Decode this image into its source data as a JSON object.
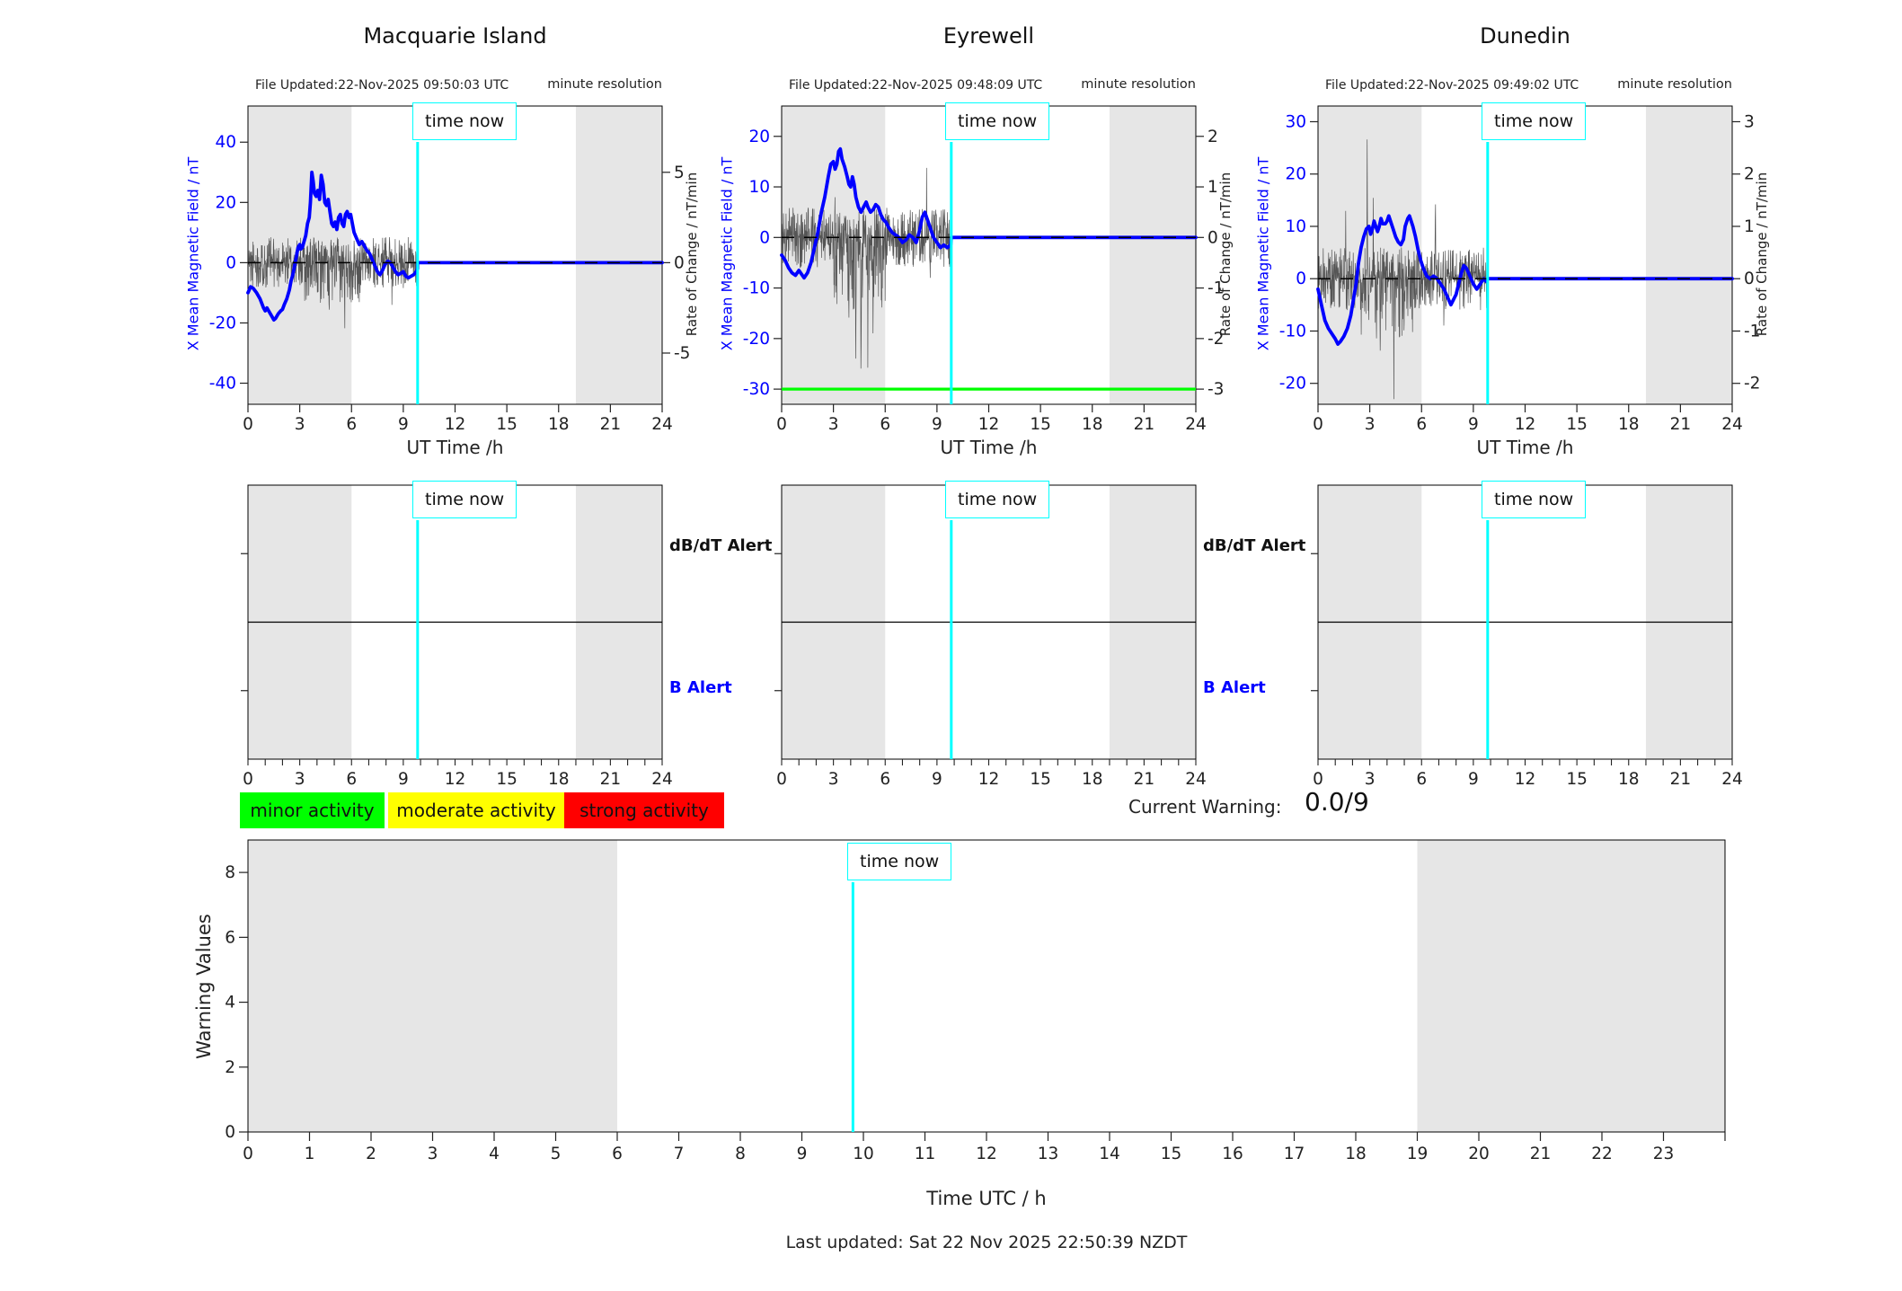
{
  "colors": {
    "blue": "#0000FF",
    "cyan": "#00FFFF",
    "green": "#00FF00",
    "yellow": "#FFFF00",
    "red": "#FF0000",
    "band_gray": "#E6E6E6",
    "noise_gray": "#555555",
    "axis_black": "#222222"
  },
  "ui": {
    "time_now_label": "time now",
    "minute_resolution": "minute resolution",
    "left_axis_label": "X Mean Magnetic Field / nT",
    "right_axis_label": "Rate of Change / nT/min",
    "top_xlabel": "UT Time /h",
    "dbdt_alert_label": "dB/dT Alert",
    "b_alert_label": "B Alert",
    "current_warning_label": "Current Warning:",
    "current_warning_value": "0.0/9",
    "warning_ylabel": "Warning Values",
    "bottom_xlabel": "Time UTC / h",
    "last_updated": "Last updated: Sat 22 Nov 2025 22:50:39 NZDT"
  },
  "legend": [
    {
      "label": "minor activity",
      "color": "#00FF00"
    },
    {
      "label": "moderate activity",
      "color": "#FFFF00"
    },
    {
      "label": "strong activity",
      "color": "#FF0000"
    }
  ],
  "time_now_hour": 9.83,
  "night_bands": [
    [
      0,
      6
    ],
    [
      19,
      24
    ]
  ],
  "chart_data": {
    "stations": [
      {
        "type": "line",
        "name": "Macquarie Island",
        "file_updated": "File Updated:22-Nov-2025 09:50:03 UTC",
        "xlabel": "UT Time /h",
        "x_ticks": [
          0,
          3,
          6,
          9,
          12,
          15,
          18,
          21,
          24
        ],
        "ylim": [
          -47,
          52
        ],
        "left_ticks": [
          -40,
          -20,
          0,
          20,
          40
        ],
        "right_ticks": [
          -5,
          0,
          5
        ],
        "right_to_left_scale": 6,
        "threshold_green": null,
        "flat_after": 0,
        "mean_field_series": [
          [
            0,
            -10
          ],
          [
            0.15,
            -8
          ],
          [
            0.3,
            -8.5
          ],
          [
            0.5,
            -10
          ],
          [
            0.7,
            -12
          ],
          [
            0.9,
            -15
          ],
          [
            1.0,
            -16
          ],
          [
            1.1,
            -15
          ],
          [
            1.25,
            -16.5
          ],
          [
            1.4,
            -18
          ],
          [
            1.5,
            -19
          ],
          [
            1.6,
            -18.5
          ],
          [
            1.75,
            -17
          ],
          [
            1.9,
            -16
          ],
          [
            2.0,
            -15.5
          ],
          [
            2.1,
            -14
          ],
          [
            2.25,
            -12
          ],
          [
            2.4,
            -9
          ],
          [
            2.5,
            -6
          ],
          [
            2.6,
            -4
          ],
          [
            2.7,
            -1
          ],
          [
            2.8,
            2
          ],
          [
            2.9,
            5
          ],
          [
            3.0,
            6
          ],
          [
            3.05,
            4.5
          ],
          [
            3.15,
            5
          ],
          [
            3.25,
            7
          ],
          [
            3.35,
            9
          ],
          [
            3.45,
            13
          ],
          [
            3.55,
            15
          ],
          [
            3.62,
            20
          ],
          [
            3.7,
            30
          ],
          [
            3.78,
            27
          ],
          [
            3.85,
            23
          ],
          [
            3.95,
            22
          ],
          [
            4.05,
            24
          ],
          [
            4.15,
            21
          ],
          [
            4.25,
            29
          ],
          [
            4.35,
            26
          ],
          [
            4.45,
            20
          ],
          [
            4.55,
            19
          ],
          [
            4.65,
            21
          ],
          [
            4.75,
            17
          ],
          [
            4.85,
            13
          ],
          [
            4.95,
            12
          ],
          [
            5.05,
            13.5
          ],
          [
            5.15,
            11
          ],
          [
            5.25,
            15
          ],
          [
            5.35,
            16
          ],
          [
            5.45,
            13
          ],
          [
            5.55,
            12
          ],
          [
            5.65,
            16
          ],
          [
            5.75,
            17
          ],
          [
            5.85,
            15
          ],
          [
            5.95,
            16
          ],
          [
            6.05,
            13
          ],
          [
            6.15,
            10
          ],
          [
            6.3,
            8
          ],
          [
            6.45,
            6
          ],
          [
            6.6,
            7
          ],
          [
            6.75,
            5.5
          ],
          [
            6.9,
            4
          ],
          [
            7.05,
            3
          ],
          [
            7.2,
            1
          ],
          [
            7.35,
            -1
          ],
          [
            7.5,
            -3
          ],
          [
            7.65,
            -4
          ],
          [
            7.8,
            -2.5
          ],
          [
            7.95,
            -0.5
          ],
          [
            8.1,
            0.5
          ],
          [
            8.25,
            0
          ],
          [
            8.4,
            -1.5
          ],
          [
            8.55,
            -3
          ],
          [
            8.7,
            -4
          ],
          [
            8.85,
            -3.5
          ],
          [
            9.0,
            -3
          ],
          [
            9.15,
            -4.5
          ],
          [
            9.3,
            -5
          ],
          [
            9.45,
            -4.5
          ],
          [
            9.6,
            -4
          ],
          [
            9.75,
            -3
          ],
          [
            9.83,
            -2
          ]
        ],
        "noise": {
          "seed": 11,
          "amp": 8.5,
          "down_boost": [
            3.0,
            6.5,
            1.6
          ],
          "spikes": [
            [
              3.2,
              14
            ],
            [
              4.7,
              -23
            ],
            [
              5.6,
              -18
            ],
            [
              8.2,
              12
            ],
            [
              8.35,
              -10
            ]
          ]
        }
      },
      {
        "type": "line",
        "name": "Eyrewell",
        "file_updated": "File Updated:22-Nov-2025 09:48:09 UTC",
        "xlabel": "UT Time /h",
        "x_ticks": [
          0,
          3,
          6,
          9,
          12,
          15,
          18,
          21,
          24
        ],
        "ylim": [
          -33,
          26
        ],
        "left_ticks": [
          -30,
          -20,
          -10,
          0,
          10,
          20
        ],
        "right_ticks": [
          -3,
          -2,
          -1,
          0,
          1,
          2
        ],
        "right_to_left_scale": 10,
        "threshold_green": -30,
        "flat_after": 0,
        "mean_field_series": [
          [
            0,
            -3.5
          ],
          [
            0.2,
            -4.5
          ],
          [
            0.4,
            -6
          ],
          [
            0.6,
            -7
          ],
          [
            0.8,
            -7.5
          ],
          [
            1.0,
            -6.5
          ],
          [
            1.1,
            -7
          ],
          [
            1.3,
            -8
          ],
          [
            1.5,
            -7
          ],
          [
            1.7,
            -5
          ],
          [
            1.9,
            -2
          ],
          [
            2.1,
            1
          ],
          [
            2.3,
            5
          ],
          [
            2.5,
            8
          ],
          [
            2.7,
            12
          ],
          [
            2.85,
            14.5
          ],
          [
            3.0,
            15
          ],
          [
            3.1,
            13.5
          ],
          [
            3.2,
            14.5
          ],
          [
            3.3,
            17
          ],
          [
            3.4,
            17.5
          ],
          [
            3.5,
            15.5
          ],
          [
            3.65,
            14
          ],
          [
            3.8,
            12
          ],
          [
            3.9,
            10.5
          ],
          [
            4.0,
            10
          ],
          [
            4.1,
            12
          ],
          [
            4.2,
            10.5
          ],
          [
            4.3,
            8
          ],
          [
            4.45,
            6
          ],
          [
            4.6,
            5
          ],
          [
            4.75,
            6
          ],
          [
            4.9,
            7
          ],
          [
            5.0,
            6
          ],
          [
            5.15,
            5
          ],
          [
            5.3,
            5.5
          ],
          [
            5.45,
            6.5
          ],
          [
            5.6,
            6
          ],
          [
            5.75,
            4.5
          ],
          [
            5.9,
            3.5
          ],
          [
            6.05,
            3
          ],
          [
            6.2,
            2
          ],
          [
            6.4,
            1
          ],
          [
            6.6,
            0.5
          ],
          [
            6.8,
            0
          ],
          [
            7.0,
            -1
          ],
          [
            7.2,
            -0.5
          ],
          [
            7.4,
            0.5
          ],
          [
            7.6,
            0
          ],
          [
            7.8,
            -1
          ],
          [
            8.0,
            1.5
          ],
          [
            8.15,
            4
          ],
          [
            8.3,
            5
          ],
          [
            8.45,
            3.5
          ],
          [
            8.6,
            2
          ],
          [
            8.8,
            0
          ],
          [
            9.0,
            -1
          ],
          [
            9.2,
            -2
          ],
          [
            9.4,
            -1.5
          ],
          [
            9.6,
            -2
          ],
          [
            9.8,
            -1.5
          ]
        ],
        "noise": {
          "seed": 23,
          "amp": 6.0,
          "down_boost": [
            3.0,
            6.0,
            2.4
          ],
          "spikes": [
            [
              3.1,
              12
            ],
            [
              3.9,
              -16
            ],
            [
              4.3,
              -20
            ],
            [
              4.6,
              -26
            ],
            [
              5.0,
              -22
            ],
            [
              5.3,
              -15
            ],
            [
              8.4,
              10
            ],
            [
              8.6,
              -12
            ]
          ]
        }
      },
      {
        "type": "line",
        "name": "Dunedin",
        "file_updated": "File Updated:22-Nov-2025 09:49:02 UTC",
        "xlabel": "UT Time /h",
        "x_ticks": [
          0,
          3,
          6,
          9,
          12,
          15,
          18,
          21,
          24
        ],
        "ylim": [
          -24,
          33
        ],
        "left_ticks": [
          -20,
          -10,
          0,
          10,
          20,
          30
        ],
        "right_ticks": [
          -2,
          -1,
          0,
          1,
          2,
          3
        ],
        "right_to_left_scale": 10,
        "threshold_green": null,
        "flat_after": 0,
        "mean_field_series": [
          [
            0,
            -2
          ],
          [
            0.2,
            -5
          ],
          [
            0.4,
            -8
          ],
          [
            0.6,
            -9.5
          ],
          [
            0.8,
            -10.5
          ],
          [
            1.0,
            -11.5
          ],
          [
            1.15,
            -12.5
          ],
          [
            1.3,
            -12
          ],
          [
            1.5,
            -11
          ],
          [
            1.7,
            -9.5
          ],
          [
            1.9,
            -7
          ],
          [
            2.05,
            -4
          ],
          [
            2.2,
            -1
          ],
          [
            2.35,
            3
          ],
          [
            2.5,
            6
          ],
          [
            2.65,
            8
          ],
          [
            2.8,
            9.5
          ],
          [
            2.95,
            10
          ],
          [
            3.05,
            8.5
          ],
          [
            3.15,
            9.5
          ],
          [
            3.25,
            11
          ],
          [
            3.35,
            10
          ],
          [
            3.45,
            9
          ],
          [
            3.55,
            10
          ],
          [
            3.65,
            11.5
          ],
          [
            3.75,
            10.5
          ],
          [
            3.9,
            10.5
          ],
          [
            4.0,
            11
          ],
          [
            4.1,
            12
          ],
          [
            4.2,
            11
          ],
          [
            4.35,
            9.5
          ],
          [
            4.5,
            8
          ],
          [
            4.65,
            7
          ],
          [
            4.8,
            6.5
          ],
          [
            4.95,
            7.5
          ],
          [
            5.05,
            10
          ],
          [
            5.2,
            11.5
          ],
          [
            5.3,
            12
          ],
          [
            5.4,
            11
          ],
          [
            5.5,
            10
          ],
          [
            5.65,
            8
          ],
          [
            5.8,
            5.5
          ],
          [
            5.95,
            3.5
          ],
          [
            6.1,
            2
          ],
          [
            6.3,
            0.5
          ],
          [
            6.5,
            0
          ],
          [
            6.7,
            0.5
          ],
          [
            6.9,
            0
          ],
          [
            7.1,
            -1
          ],
          [
            7.3,
            -2
          ],
          [
            7.5,
            -3.5
          ],
          [
            7.7,
            -5
          ],
          [
            7.85,
            -4
          ],
          [
            8.0,
            -3
          ],
          [
            8.15,
            -1
          ],
          [
            8.3,
            1
          ],
          [
            8.45,
            2.5
          ],
          [
            8.6,
            2
          ],
          [
            8.8,
            0.5
          ],
          [
            9.0,
            -1
          ],
          [
            9.2,
            -2
          ],
          [
            9.4,
            -1
          ],
          [
            9.6,
            0
          ],
          [
            9.75,
            -0.5
          ]
        ],
        "noise": {
          "seed": 37,
          "amp": 6.0,
          "down_boost": [
            2.5,
            5.5,
            2.0
          ],
          "spikes": [
            [
              1.6,
              10
            ],
            [
              2.85,
              26
            ],
            [
              3.2,
              18
            ],
            [
              3.6,
              -14
            ],
            [
              4.4,
              -18
            ],
            [
              5.0,
              -13
            ],
            [
              6.8,
              17.5
            ],
            [
              7.3,
              -12
            ]
          ]
        }
      }
    ],
    "alert_panels": {
      "x_ticks": [
        0,
        3,
        6,
        9,
        12,
        15,
        18,
        21,
        24
      ],
      "rows": [
        "dB/dT Alert",
        "B Alert"
      ]
    },
    "warning_chart": {
      "type": "line",
      "title": "",
      "ylabel": "Warning Values",
      "xlabel": "Time UTC / h",
      "ylim": [
        0,
        9
      ],
      "y_ticks": [
        0,
        2,
        4,
        6,
        8
      ],
      "x_tick_labels": [
        0,
        1,
        2,
        3,
        4,
        5,
        6,
        7,
        8,
        9,
        10,
        11,
        12,
        13,
        14,
        15,
        16,
        17,
        18,
        19,
        20,
        21,
        22,
        23
      ],
      "series": [],
      "current_warning": "0.0/9"
    }
  }
}
